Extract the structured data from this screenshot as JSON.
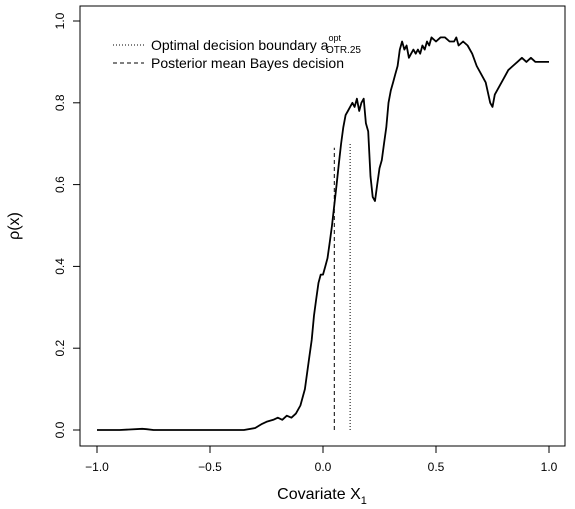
{
  "chart_data": {
    "type": "line",
    "xlabel": "Covariate X",
    "xlabel_sub": "1",
    "ylabel": "ρ(x)",
    "xlim": [
      -1.0,
      1.0
    ],
    "ylim": [
      0.0,
      1.0
    ],
    "x_ticks": [
      {
        "value": -1.0,
        "label": "−1.0"
      },
      {
        "value": -0.5,
        "label": "−0.5"
      },
      {
        "value": 0.0,
        "label": "0.0"
      },
      {
        "value": 0.5,
        "label": "0.5"
      },
      {
        "value": 1.0,
        "label": "1.0"
      }
    ],
    "y_ticks": [
      {
        "value": 0.0,
        "label": "0.0"
      },
      {
        "value": 0.2,
        "label": "0.2"
      },
      {
        "value": 0.4,
        "label": "0.4"
      },
      {
        "value": 0.6,
        "label": "0.6"
      },
      {
        "value": 0.8,
        "label": "0.8"
      },
      {
        "value": 1.0,
        "label": "1.0"
      }
    ],
    "grid": false,
    "legend_position": "top-left",
    "legend": [
      {
        "label": "Optimal decision boundary a",
        "sup": "opt",
        "sub": "OTR.25",
        "style": "dotted"
      },
      {
        "label": "Posterior mean Bayes decision",
        "style": "dashed"
      }
    ],
    "series": [
      {
        "style": "solid",
        "x": [
          -1.0,
          -0.9,
          -0.8,
          -0.78,
          -0.75,
          -0.6,
          -0.5,
          -0.4,
          -0.35,
          -0.3,
          -0.27,
          -0.25,
          -0.22,
          -0.2,
          -0.18,
          -0.16,
          -0.14,
          -0.12,
          -0.1,
          -0.08,
          -0.06,
          -0.05,
          -0.04,
          -0.03,
          -0.02,
          -0.01,
          0.0,
          0.01,
          0.02,
          0.03,
          0.04,
          0.05,
          0.06,
          0.07,
          0.08,
          0.09,
          0.1,
          0.11,
          0.12,
          0.13,
          0.14,
          0.15,
          0.16,
          0.17,
          0.18,
          0.19,
          0.2,
          0.21,
          0.22,
          0.23,
          0.24,
          0.25,
          0.26,
          0.27,
          0.28,
          0.29,
          0.3,
          0.31,
          0.32,
          0.33,
          0.34,
          0.35,
          0.36,
          0.37,
          0.38,
          0.39,
          0.4,
          0.41,
          0.42,
          0.43,
          0.44,
          0.45,
          0.46,
          0.47,
          0.48,
          0.5,
          0.52,
          0.54,
          0.56,
          0.58,
          0.59,
          0.6,
          0.62,
          0.64,
          0.66,
          0.68,
          0.7,
          0.72,
          0.74,
          0.75,
          0.76,
          0.78,
          0.8,
          0.82,
          0.84,
          0.86,
          0.88,
          0.9,
          0.92,
          0.94,
          0.96,
          1.0
        ],
        "y": [
          0.0,
          0.0,
          0.003,
          0.002,
          0.0,
          0.0,
          0.0,
          0.0,
          0.0,
          0.005,
          0.015,
          0.02,
          0.025,
          0.03,
          0.025,
          0.035,
          0.03,
          0.04,
          0.06,
          0.1,
          0.18,
          0.22,
          0.28,
          0.32,
          0.36,
          0.38,
          0.38,
          0.4,
          0.42,
          0.46,
          0.5,
          0.55,
          0.6,
          0.65,
          0.7,
          0.74,
          0.77,
          0.78,
          0.79,
          0.8,
          0.79,
          0.81,
          0.78,
          0.8,
          0.81,
          0.75,
          0.73,
          0.62,
          0.57,
          0.56,
          0.6,
          0.64,
          0.66,
          0.7,
          0.74,
          0.8,
          0.83,
          0.85,
          0.87,
          0.89,
          0.93,
          0.95,
          0.93,
          0.94,
          0.91,
          0.92,
          0.93,
          0.92,
          0.93,
          0.92,
          0.94,
          0.93,
          0.95,
          0.94,
          0.96,
          0.95,
          0.96,
          0.96,
          0.95,
          0.95,
          0.96,
          0.94,
          0.95,
          0.94,
          0.92,
          0.89,
          0.87,
          0.85,
          0.8,
          0.79,
          0.82,
          0.84,
          0.86,
          0.88,
          0.89,
          0.9,
          0.91,
          0.9,
          0.91,
          0.9,
          0.9,
          0.9
        ]
      }
    ],
    "vlines": [
      {
        "name": "optimal-boundary",
        "x": 0.12,
        "y_top": 0.7,
        "style": "dotted"
      },
      {
        "name": "posterior-mean-decision",
        "x": 0.05,
        "y_top": 0.69,
        "style": "dashed"
      }
    ]
  }
}
